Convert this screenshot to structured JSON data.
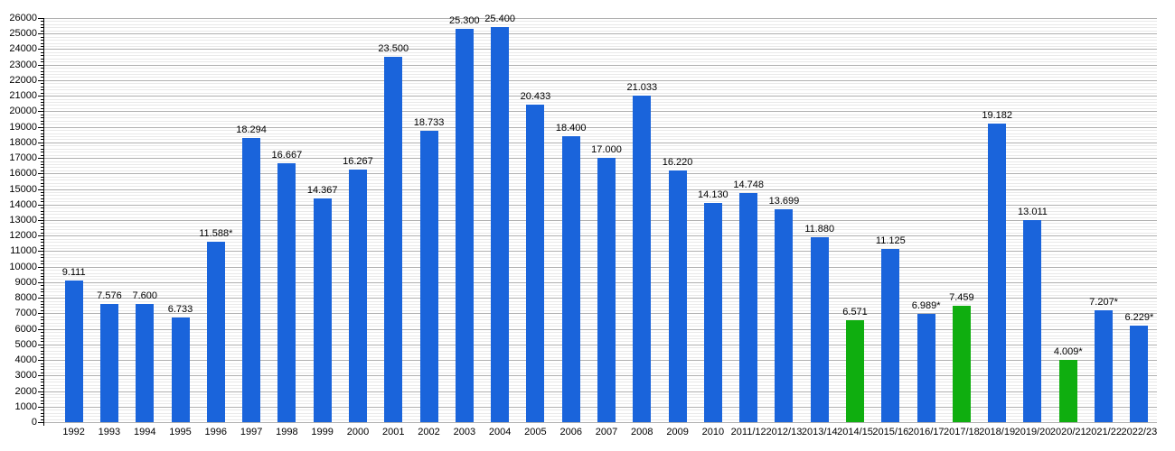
{
  "chart_data": {
    "type": "bar",
    "title": "",
    "xlabel": "",
    "ylabel": "",
    "categories": [
      "1992",
      "1993",
      "1994",
      "1995",
      "1996",
      "1997",
      "1998",
      "1999",
      "2000",
      "2001",
      "2002",
      "2003",
      "2004",
      "2005",
      "2006",
      "2007",
      "2008",
      "2009",
      "2010",
      "2011/12",
      "2012/13",
      "2013/14",
      "2014/15",
      "2015/16",
      "2016/17",
      "2017/18",
      "2018/19",
      "2019/20",
      "2020/21",
      "2021/22",
      "2022/23"
    ],
    "values": [
      9111,
      7576,
      7600,
      6733,
      11588,
      18294,
      16667,
      14367,
      16267,
      23500,
      18733,
      25300,
      25400,
      20433,
      18400,
      17000,
      21033,
      16220,
      14130,
      14748,
      13699,
      11880,
      6571,
      11125,
      6989,
      7459,
      19182,
      13011,
      4009,
      7207,
      6229
    ],
    "value_labels": [
      "9.111",
      "7.576",
      "7.600",
      "6.733",
      "11.588*",
      "18.294",
      "16.667",
      "14.367",
      "16.267",
      "23.500",
      "18.733",
      "25.300",
      "25.400",
      "20.433",
      "18.400",
      "17.000",
      "21.033",
      "16.220",
      "14.130",
      "14.748",
      "13.699",
      "11.880",
      "6.571",
      "11.125",
      "6.989*",
      "7.459",
      "19.182",
      "13.011",
      "4.009*",
      "7.207*",
      "6.229*"
    ],
    "highlight_indices": [
      22,
      25,
      28
    ],
    "ylim": [
      0,
      26000
    ],
    "ytick_major": 1000,
    "ytick_minor": 200,
    "y_tick_labels": [
      "0",
      "1000",
      "2000",
      "3000",
      "4000",
      "5000",
      "6000",
      "7000",
      "8000",
      "9000",
      "10000",
      "11000",
      "12000",
      "13000",
      "14000",
      "15000",
      "16000",
      "17000",
      "18000",
      "19000",
      "20000",
      "21000",
      "22000",
      "23000",
      "24000",
      "25000",
      "26000"
    ],
    "grid": "on",
    "legend": "none",
    "colors": {
      "bar_default": "#1a64db",
      "bar_highlight": "#0fae0f",
      "grid_major": "#b0b0b0",
      "grid_minor": "#e9e9e9",
      "axis": "#000000",
      "text": "#000000",
      "background": "#ffffff"
    }
  }
}
